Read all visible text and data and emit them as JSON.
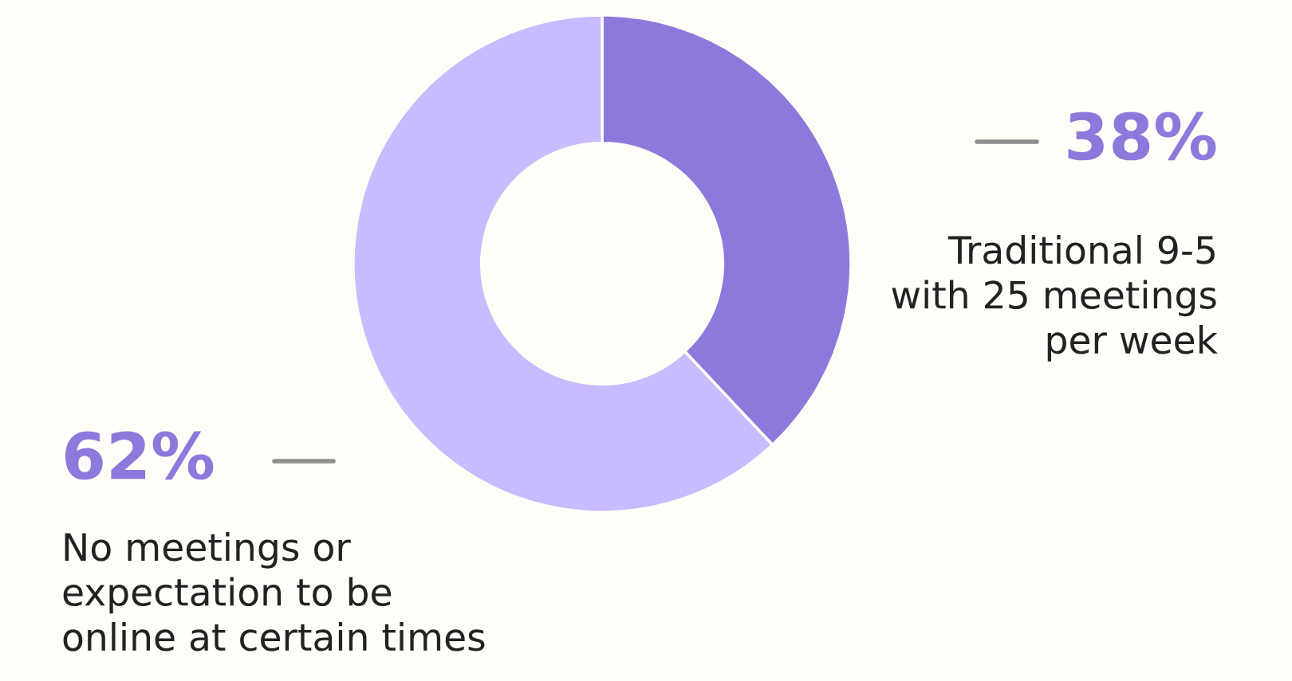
{
  "chart_data": {
    "type": "donut",
    "categories": [
      "Traditional 9-5\nwith 25 meetings\nper week",
      "No meetings or\nexpectation to be\nonline at certain times"
    ],
    "values": [
      38,
      62
    ],
    "colors": [
      "#8f78dc",
      "#c9bbff"
    ],
    "value_labels": [
      "38%",
      "62%"
    ],
    "legend": false
  }
}
